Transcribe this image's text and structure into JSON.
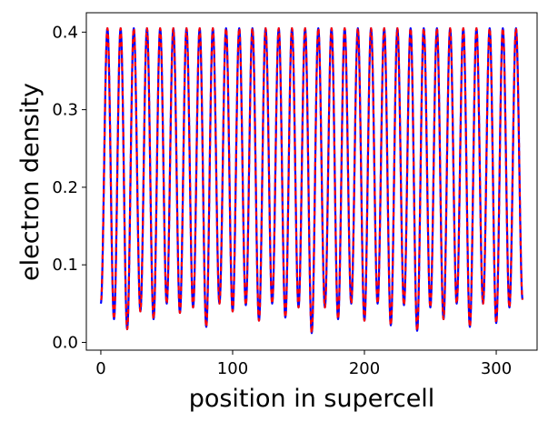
{
  "chart_data": {
    "type": "line",
    "title": "",
    "xlabel": "position in supercell",
    "ylabel": "electron density",
    "xlim": [
      -11,
      331
    ],
    "ylim": [
      -0.01,
      0.425
    ],
    "xticks": [
      {
        "value": 0,
        "label": "0"
      },
      {
        "value": 100,
        "label": "100"
      },
      {
        "value": 200,
        "label": "200"
      },
      {
        "value": 300,
        "label": "300"
      }
    ],
    "yticks": [
      {
        "value": 0.0,
        "label": "0.0"
      },
      {
        "value": 0.1,
        "label": "0.1"
      },
      {
        "value": 0.2,
        "label": "0.2"
      },
      {
        "value": 0.3,
        "label": "0.3"
      },
      {
        "value": 0.4,
        "label": "0.4"
      }
    ],
    "grid": false,
    "legend": "none",
    "wave_model": {
      "x_start": 0,
      "x_end": 320,
      "peak_value": 0.405,
      "peak_positions": [
        5,
        15,
        25,
        35,
        45,
        55,
        65,
        75,
        85,
        95,
        105,
        115,
        125,
        135,
        145,
        155,
        165,
        175,
        185,
        195,
        205,
        215,
        225,
        235,
        245,
        255,
        265,
        275,
        285,
        295,
        305,
        315
      ],
      "valley_positions": [
        0,
        10,
        20,
        30,
        40,
        50,
        60,
        70,
        80,
        90,
        100,
        110,
        120,
        130,
        140,
        150,
        160,
        170,
        180,
        190,
        200,
        210,
        220,
        230,
        240,
        250,
        260,
        270,
        280,
        290,
        300,
        310,
        320
      ],
      "valley_values": [
        0.05,
        0.03,
        0.017,
        0.04,
        0.03,
        0.05,
        0.038,
        0.045,
        0.02,
        0.05,
        0.04,
        0.048,
        0.028,
        0.05,
        0.032,
        0.045,
        0.012,
        0.045,
        0.03,
        0.05,
        0.028,
        0.05,
        0.022,
        0.048,
        0.015,
        0.045,
        0.03,
        0.05,
        0.02,
        0.05,
        0.025,
        0.045,
        0.055
      ]
    },
    "series": [
      {
        "color": "#0000ff",
        "style": "solid",
        "dash_phase": 0
      },
      {
        "color": "#ff0000",
        "style": "dashed",
        "dash_phase": 5
      }
    ]
  }
}
